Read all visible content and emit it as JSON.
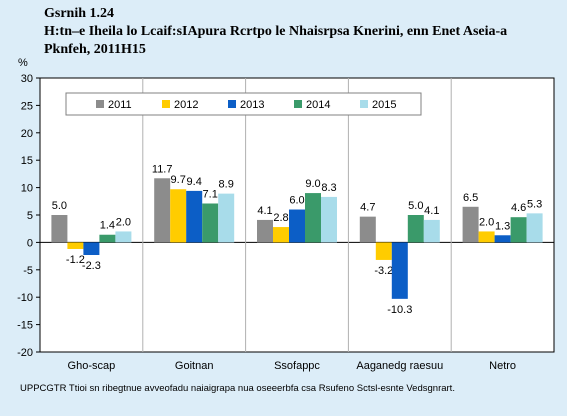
{
  "title": {
    "line1": "Gsrnih 1.24",
    "line2": "H:tn–e Iheila lo Lcaif:sIApura Rcrtpo le Nhaisrpsa Knerini, enn Enet Aseia-a",
    "line3": "Pknfeh, 2011H15"
  },
  "footnote": "UPPCGTR Ttioi sn ribegtnue avveofadu naiaigrapa nua oseeerbfa csa Rsufeno Sctsl-esnte Vedsgnrart.",
  "colors": {
    "background": "#dcedf8",
    "plot_background": "#ffffff",
    "2011": "#8c8c8c",
    "2012": "#ffcc00",
    "2013": "#0c5ec6",
    "2014": "#3a9a6a",
    "2015": "#a8dcea"
  },
  "chart_data": {
    "type": "bar",
    "title": "",
    "ylabel": "%",
    "ylim": [
      -20,
      30
    ],
    "yticks": [
      -20,
      -15,
      -10,
      -5,
      0,
      5,
      10,
      15,
      20,
      25,
      30
    ],
    "grid": false,
    "legend_position": "top",
    "categories": [
      "Gho-scap",
      "Goitnan",
      "Ssofappc",
      "Aaganedg raesuu",
      "Netro"
    ],
    "series": [
      {
        "name": "2011",
        "values": [
          5.0,
          11.7,
          4.1,
          4.7,
          6.5
        ]
      },
      {
        "name": "2012",
        "values": [
          -1.2,
          9.7,
          2.8,
          -3.2,
          2.0
        ]
      },
      {
        "name": "2013",
        "values": [
          -2.3,
          9.4,
          6.0,
          -10.3,
          1.3
        ]
      },
      {
        "name": "2014",
        "values": [
          1.4,
          7.1,
          9.0,
          5.0,
          4.6
        ]
      },
      {
        "name": "2015",
        "values": [
          2.0,
          8.9,
          8.3,
          4.1,
          5.3
        ]
      }
    ]
  }
}
